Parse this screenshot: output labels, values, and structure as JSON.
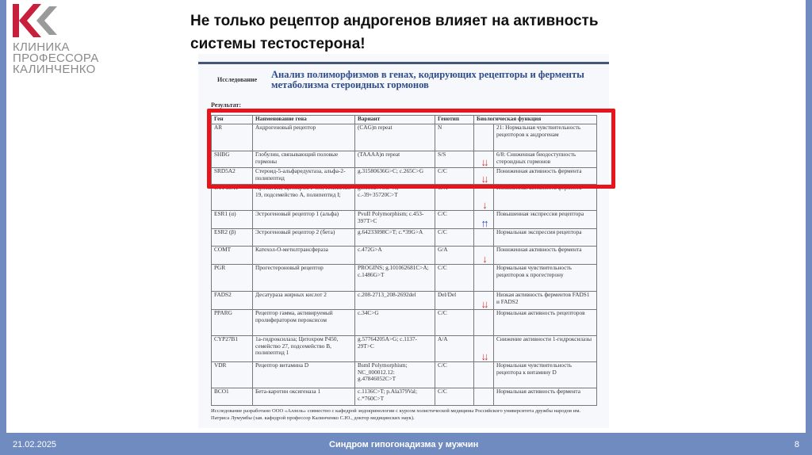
{
  "logo": {
    "lines": [
      "КЛИНИКА",
      "ПРОФЕССОРА",
      "КАЛИНЧЕНКО"
    ]
  },
  "title": {
    "line1": "Не только рецептор андрогенов влияет на активность",
    "line2": "системы тестостерона!"
  },
  "document": {
    "study_label": "Исследование",
    "study_title": "Анализ полиморфизмов в генах, кодирующих рецепторы и ферменты метаболизма стероидных гормонов",
    "result_label": "Результат:",
    "columns": [
      "Ген",
      "Наименование гена",
      "Вариант",
      "Генотип",
      "Биологическая функция"
    ],
    "rows": [
      {
        "gene": "AR",
        "name": "Андрогеновый рецептор",
        "variant": "(CAG)n repeat",
        "genotype": "N",
        "arrow": "",
        "function": "21: Нормальная чувствительность рецепторов к андрогенам"
      },
      {
        "gene": "SHBG",
        "name": "Глобулин, связывающий половые гормоны",
        "variant": "(TAAAA)n repeat",
        "genotype": "S/S",
        "arrow": "↓↓",
        "function": "6/8: Сниженная биодоступность стероидных гормонов"
      },
      {
        "gene": "SRD5A2",
        "name": "Стероид-5-альфаредуктаза, альфа-2-полипептид",
        "variant": "g.31580636G>C; c.265C>G",
        "genotype": "C/C",
        "arrow": "↓↓",
        "function": "Пониженная активность фермента"
      },
      {
        "gene": "CYP19A1",
        "name": "Ароматаза; Цитохром P450, семейство 19, подсемейство A, полипептид I;",
        "variant": "g.51502775G>A; c.-39+35720C>T",
        "genotype": "G/A",
        "arrow": "↓",
        "function": "Пониженная активность фермента"
      },
      {
        "gene": "ESR1 (α)",
        "name": "Эстрогеновый рецептор 1 (альфа)",
        "variant": "PvuII Polymorphism; c.453-397T>C",
        "genotype": "C/C",
        "arrow": "↑↑",
        "function": "Повышенная экспрессия рецептора"
      },
      {
        "gene": "ESR2 (β)",
        "name": "Эстрогеновый рецептор 2 (бета)",
        "variant": "g.64233098C>T; c.*39G>A",
        "genotype": "C/C",
        "arrow": "",
        "function": "Нормальная экспрессия рецептора"
      },
      {
        "gene": "COMT",
        "name": "Катехол-О-метилтрансфераза",
        "variant": "c.472G>A",
        "genotype": "G/A",
        "arrow": "↓",
        "function": "Пониженная активность фермента"
      },
      {
        "gene": "PGR",
        "name": "Прогестероновый рецептор",
        "variant": "PROGINS; g.101062681C>A; c.1486G>T",
        "genotype": "C/C",
        "arrow": "",
        "function": "Нормальная чувствительность рецепторов к прогестерону"
      },
      {
        "gene": "FADS2",
        "name": "Десатураза жирных кислот 2",
        "variant": "c.208-2713_208-2692del",
        "genotype": "Del/Del",
        "arrow": "↓↓",
        "function": "Низкая активность ферментов FADS1 и FADS2"
      },
      {
        "gene": "PPARG",
        "name": "Рецептор гамма, активируемый пролифератором пероксисом",
        "variant": "c.34C>G",
        "genotype": "C/C",
        "arrow": "",
        "function": "Нормальная активность рецепторов"
      },
      {
        "gene": "CYP27B1",
        "name": "1а-гидроксилаза; Цитохром P450, семейство 27, подсемейство B, полипептид 1",
        "variant": "g.57764205A>G; c.1137-29T>C",
        "genotype": "A/A",
        "arrow": "↓↓",
        "function": "Снижение активности 1-гидроксилазы"
      },
      {
        "gene": "VDR",
        "name": "Рецептор витамина D",
        "variant": "BsmI Polymorphism; NC_000012.12: g.47846052C>T",
        "genotype": "C/C",
        "arrow": "",
        "function": "Нормальная чувствительность рецептора к витамину D"
      },
      {
        "gene": "BCO1",
        "name": "Бета-каротин оксигеназа 1",
        "variant": "c.1136C>T; p.Ala379Val; c.*760C>T",
        "genotype": "C/C",
        "arrow": "",
        "function": "Нормальная активность фермента"
      }
    ],
    "footnote": "Исследование разработано ООО «Аллель» совместно с кафедрой эндокринологии с курсом холистической медицины Российского университета дружбы народов им. Патриса Лумумбы (зав. кафедрой профессор Калинченко С.Ю., доктор медицинских наук)."
  },
  "footer": {
    "date": "21.02.2025",
    "title": "Синдром гипогонадизма у мужчин",
    "page": "8"
  },
  "colors": {
    "accent": "#6f8bc0",
    "highlight": "#e8141b",
    "arrow_down": "#d33333",
    "arrow_up": "#2a3dbb",
    "logo_red": "#c8203c",
    "logo_grey": "#9a9a9a"
  }
}
